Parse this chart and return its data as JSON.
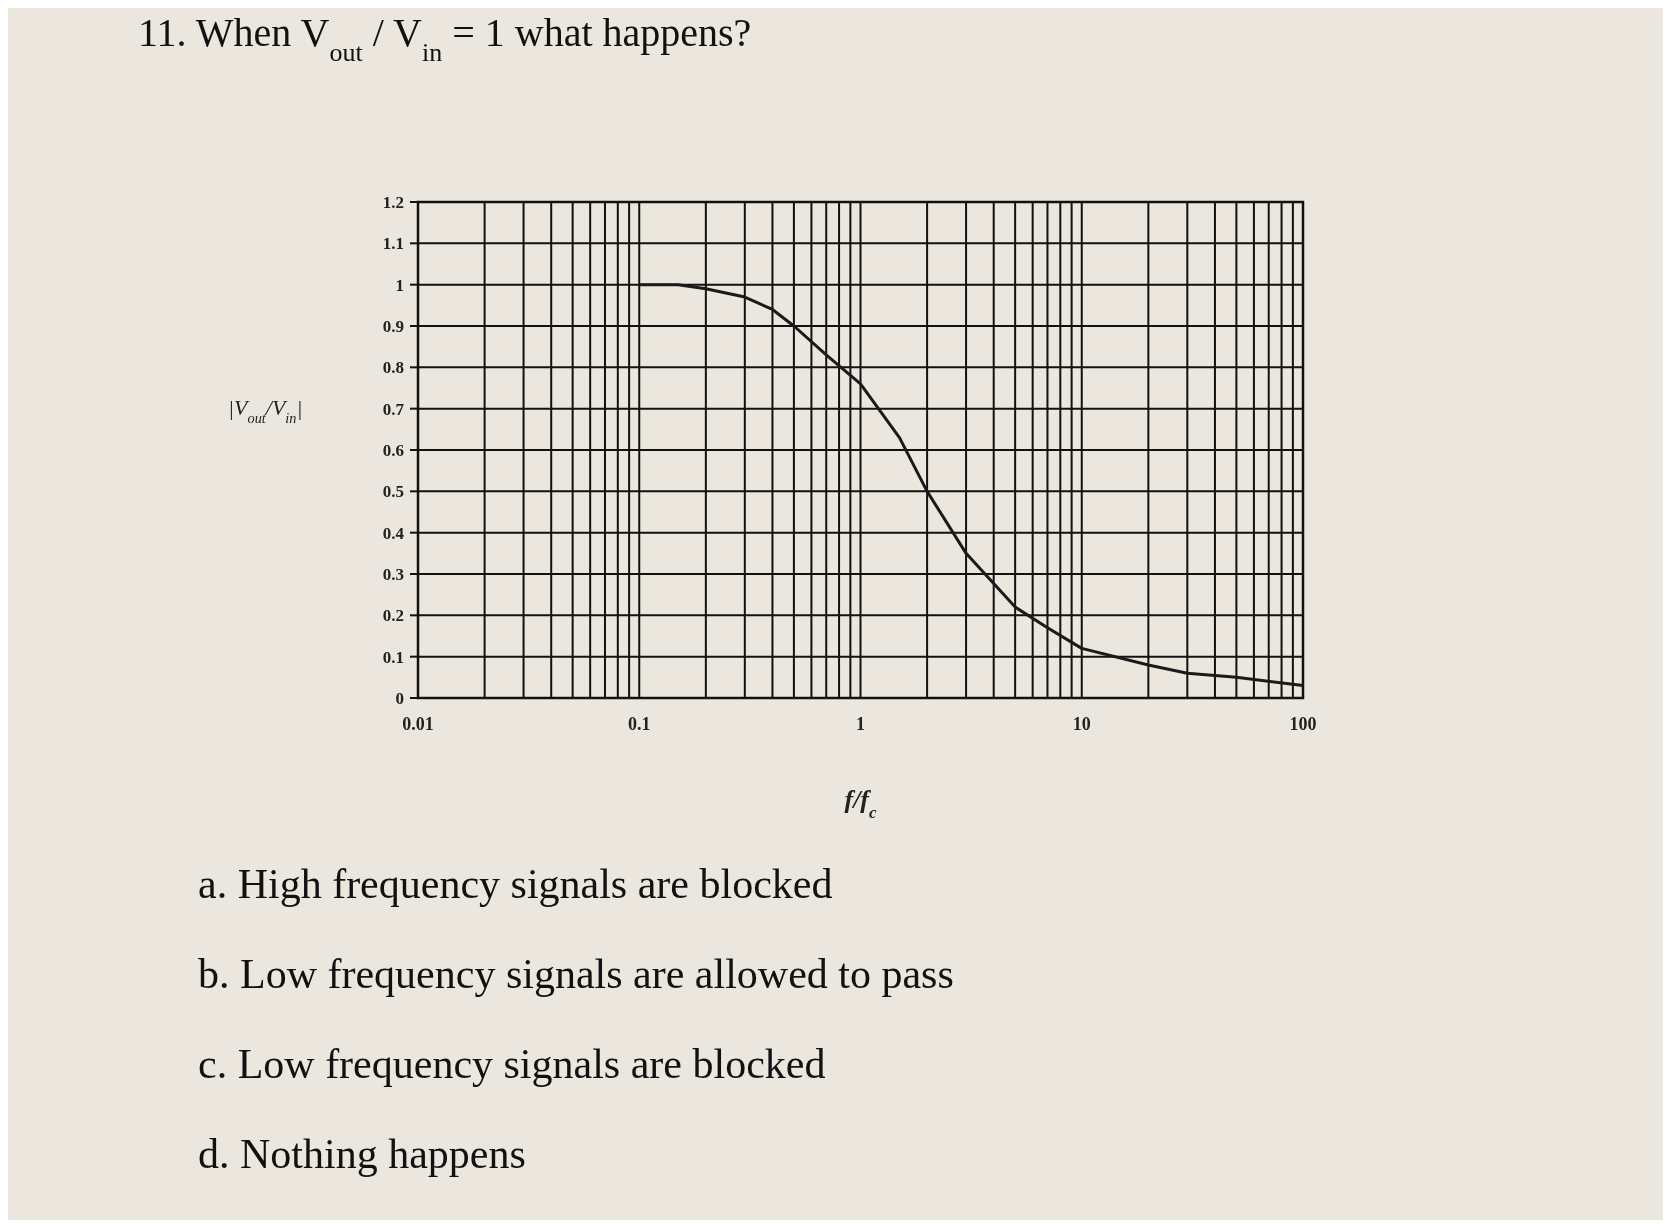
{
  "chart_data": {
    "type": "line",
    "title": "11. When V$_{out}$ / V$_{in}$ = 1 what happens?",
    "xlabel": "f/f$_{c}$",
    "ylabel": "|V$_{out}$/V$_{in}$|",
    "x": [
      0.1,
      0.15,
      0.2,
      0.3,
      0.4,
      0.5,
      0.7,
      1,
      1.5,
      2,
      3,
      5,
      7,
      10,
      20,
      30,
      50,
      100
    ],
    "series": [
      {
        "color": "#1a1a1a",
        "values": [
          1,
          1,
          0.99,
          0.97,
          0.94,
          0.9,
          0.83,
          0.76,
          0.63,
          0.5,
          0.35,
          0.22,
          0.17,
          0.12,
          0.08,
          0.06,
          0.05,
          0.03
        ]
      }
    ],
    "log": "x",
    "xlim": [
      0.01,
      100
    ],
    "xticks": [
      0.01,
      {
        "value": 0.02,
        "label": null
      },
      {
        "value": 0.03,
        "label": null
      },
      {
        "value": 0.04,
        "label": null
      },
      {
        "value": 0.05,
        "label": null
      },
      {
        "value": 0.06,
        "label": null
      },
      {
        "value": 0.07,
        "label": null
      },
      {
        "value": 0.08,
        "label": null
      },
      {
        "value": 0.09,
        "label": null
      },
      0.1,
      {
        "value": 0.2,
        "label": null
      },
      {
        "value": 0.3,
        "label": null
      },
      {
        "value": 0.4,
        "label": null
      },
      {
        "value": 0.5,
        "label": null
      },
      {
        "value": 0.6,
        "label": null
      },
      {
        "value": 0.7,
        "label": null
      },
      {
        "value": 0.8,
        "label": null
      },
      {
        "value": 0.9,
        "label": null
      },
      1,
      {
        "value": 2,
        "label": null
      },
      {
        "value": 3,
        "label": null
      },
      {
        "value": 4,
        "label": null
      },
      {
        "value": 5,
        "label": null
      },
      {
        "value": 6,
        "label": null
      },
      {
        "value": 7,
        "label": null
      },
      {
        "value": 8,
        "label": null
      },
      {
        "value": 9,
        "label": null
      },
      10,
      {
        "value": 20,
        "label": null
      },
      {
        "value": 30,
        "label": null
      },
      {
        "value": 40,
        "label": null
      },
      {
        "value": 50,
        "label": null
      },
      {
        "value": 60,
        "label": null
      },
      {
        "value": 70,
        "label": null
      },
      {
        "value": 80,
        "label": null
      },
      {
        "value": 90,
        "label": null
      },
      100
    ],
    "ylim": [
      0,
      1.2
    ],
    "yticks": [
      0,
      0.1,
      0.2,
      0.3,
      0.4,
      0.5,
      0.6,
      0.7,
      0.8,
      0.9,
      1,
      1.1,
      1.2
    ],
    "grid": true,
    "marker": "none",
    "line_style": "solid",
    "annotations": [
      "a. High frequency signals are blocked",
      "b. Low frequency signals are allowed to pass",
      "c. Low frequency signals are blocked",
      "d. Nothing happens"
    ]
  }
}
